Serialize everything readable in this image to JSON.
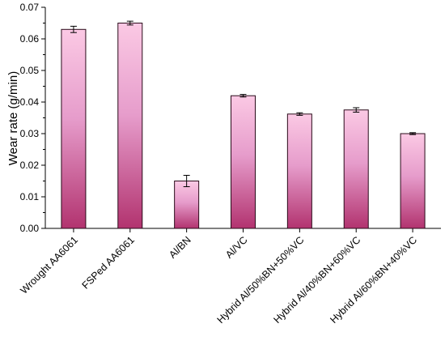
{
  "chart_data": {
    "type": "bar",
    "title": "",
    "xlabel": "",
    "ylabel": "Wear rate (g/min)",
    "ylim": [
      0,
      0.07
    ],
    "yticks": [
      "0.00",
      "0.01",
      "0.02",
      "0.03",
      "0.04",
      "0.05",
      "0.06",
      "0.07"
    ],
    "grid": false,
    "legend": "none",
    "categories": [
      "Wrought AA6061",
      "FSPed AA6061",
      "Al/BN",
      "Al/VC",
      "Hybrid Al/50%BN+50%VC",
      "Hybrid Al/40%BN+60%VC",
      "Hybrid Al/60%BN+40%VC"
    ],
    "values": [
      0.063,
      0.065,
      0.015,
      0.042,
      0.0362,
      0.0375,
      0.03
    ],
    "errors": [
      0.001,
      0.0006,
      0.0018,
      0.0004,
      0.0004,
      0.0007,
      0.0003
    ],
    "colors": {
      "bar_top": "#fbc9e4",
      "bar_mid": "#e69ccb",
      "bar_bottom": "#b2336f",
      "bar_edge": "#2a0b1a",
      "axis": "#000000"
    }
  }
}
